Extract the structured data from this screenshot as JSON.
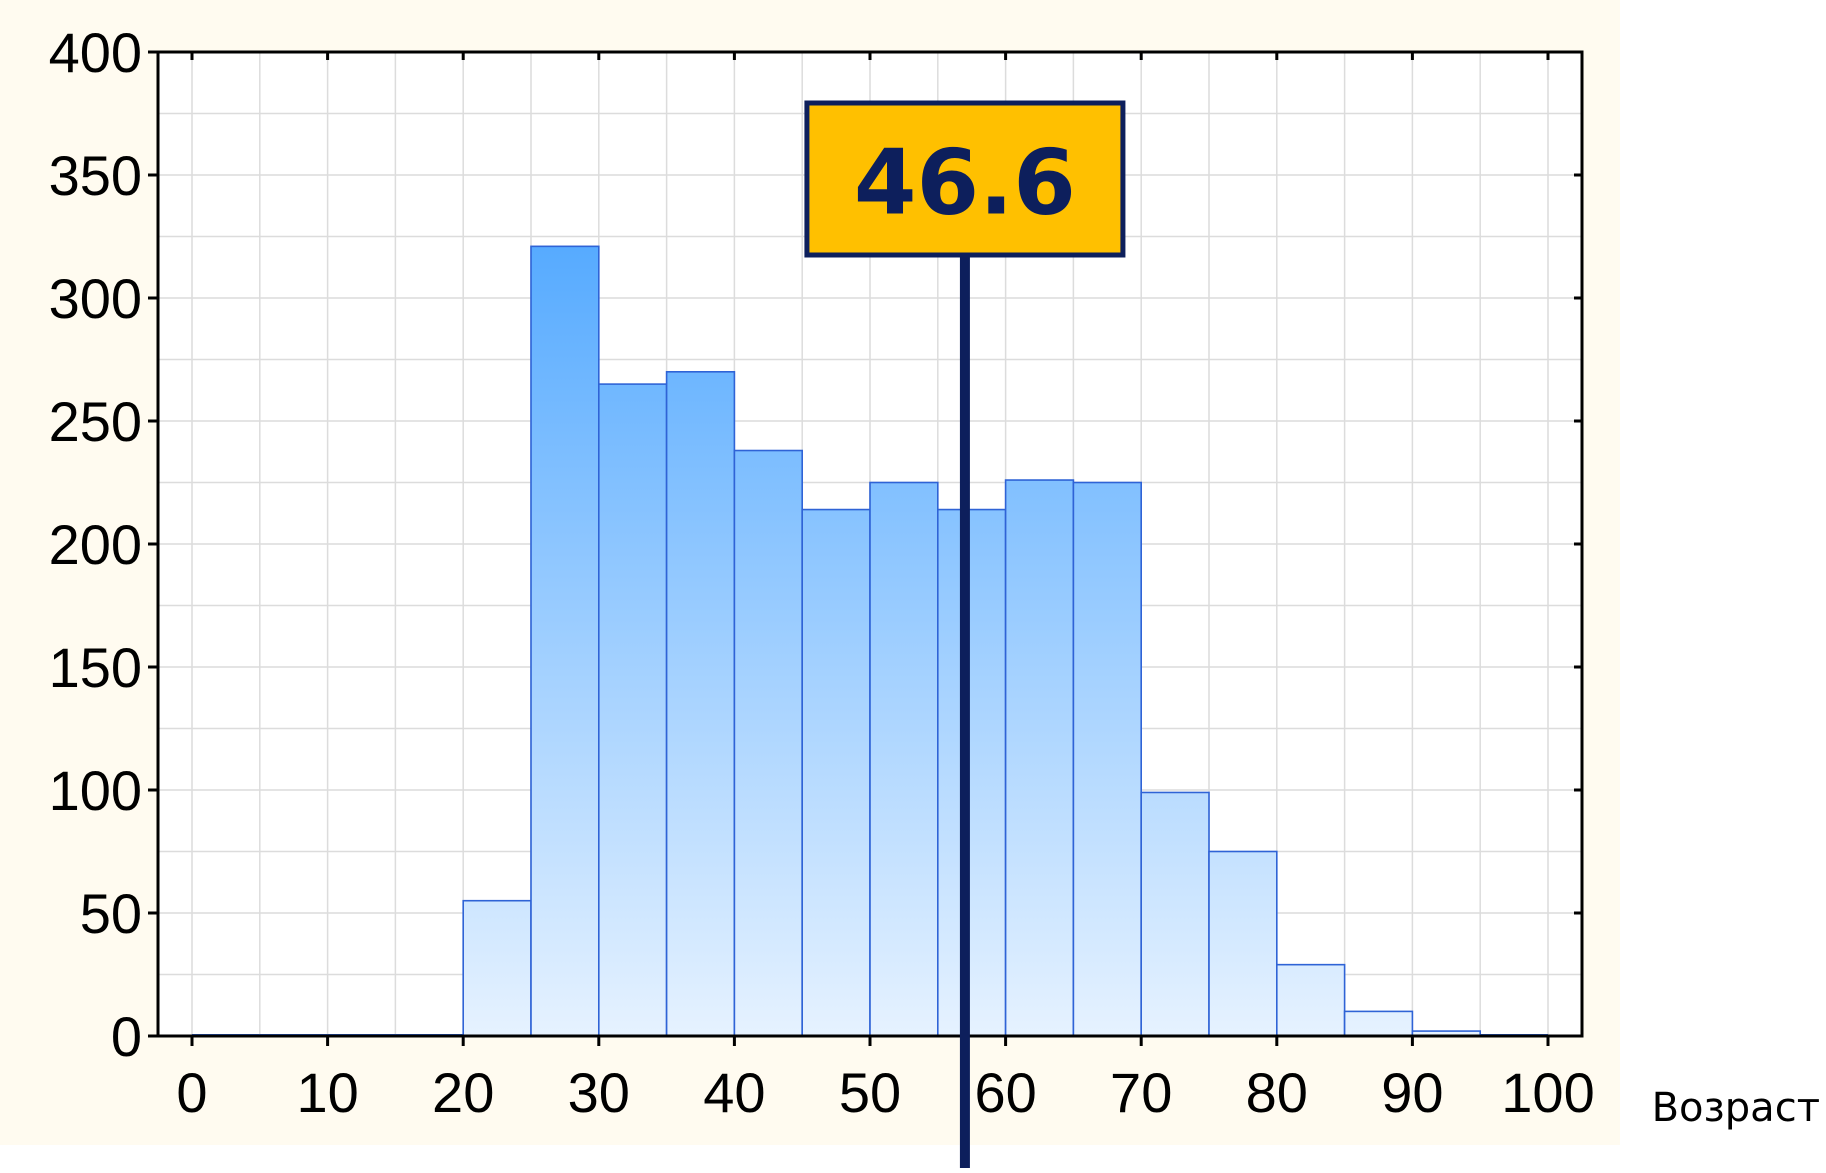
{
  "chart_data": {
    "type": "bar",
    "title": "",
    "xlabel": "Возраст",
    "ylabel": "",
    "xlim": [
      0,
      100
    ],
    "ylim": [
      0,
      400
    ],
    "x_ticks": [
      "0",
      "10",
      "20",
      "30",
      "40",
      "50",
      "60",
      "70",
      "80",
      "90",
      "100"
    ],
    "y_ticks": [
      "0",
      "50",
      "100",
      "150",
      "200",
      "250",
      "300",
      "350",
      "400"
    ],
    "grid": true,
    "legend": "none",
    "bin_width": 5,
    "bins": [
      {
        "start": 0,
        "end": 5,
        "value": 0
      },
      {
        "start": 5,
        "end": 10,
        "value": 0
      },
      {
        "start": 10,
        "end": 15,
        "value": 0
      },
      {
        "start": 15,
        "end": 20,
        "value": 0
      },
      {
        "start": 20,
        "end": 25,
        "value": 55
      },
      {
        "start": 25,
        "end": 30,
        "value": 321
      },
      {
        "start": 30,
        "end": 35,
        "value": 265
      },
      {
        "start": 35,
        "end": 40,
        "value": 270
      },
      {
        "start": 40,
        "end": 45,
        "value": 238
      },
      {
        "start": 45,
        "end": 50,
        "value": 214
      },
      {
        "start": 50,
        "end": 55,
        "value": 225
      },
      {
        "start": 55,
        "end": 60,
        "value": 214
      },
      {
        "start": 60,
        "end": 65,
        "value": 226
      },
      {
        "start": 65,
        "end": 70,
        "value": 225
      },
      {
        "start": 70,
        "end": 75,
        "value": 99
      },
      {
        "start": 75,
        "end": 80,
        "value": 75
      },
      {
        "start": 80,
        "end": 85,
        "value": 29
      },
      {
        "start": 85,
        "end": 90,
        "value": 10
      },
      {
        "start": 90,
        "end": 95,
        "value": 2
      },
      {
        "start": 95,
        "end": 100,
        "value": 0
      }
    ],
    "marker": {
      "label": "46.6",
      "x": 57
    },
    "colors": {
      "panel_bg": "#fffbf0",
      "bar_top": "#3399ff",
      "bar_bottom": "#e6f2ff",
      "bar_edge": "#2f63d6",
      "grid": "#dcdcdc",
      "axis": "#000000",
      "marker_line": "#0d1f5c",
      "marker_box": "#ffc000",
      "marker_border": "#0d1f5c"
    }
  }
}
